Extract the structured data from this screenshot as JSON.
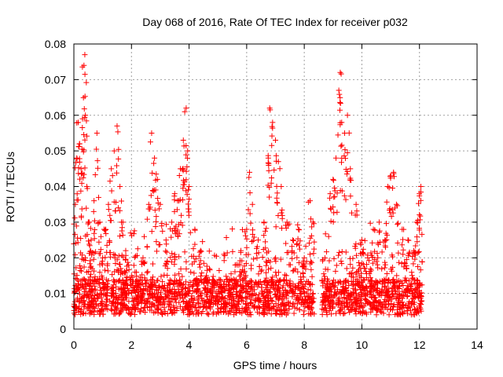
{
  "chart_data": {
    "type": "scatter",
    "title": "Day 068 of 2016, Rate Of TEC Index for receiver p032",
    "xlabel": "GPS time / hours",
    "ylabel": "ROTI / TECUs",
    "xlim": [
      0,
      14
    ],
    "ylim": [
      0,
      0.08
    ],
    "x_ticks": [
      0,
      2,
      4,
      6,
      8,
      10,
      12,
      14
    ],
    "y_ticks": [
      0,
      0.01,
      0.02,
      0.03,
      0.04,
      0.05,
      0.06,
      0.07,
      0.08
    ],
    "x_tick_labels": [
      "0",
      "2",
      "4",
      "6",
      "8",
      "10",
      "12",
      "14"
    ],
    "y_tick_labels": [
      "0",
      "0.01",
      "0.02",
      "0.03",
      "0.04",
      "0.05",
      "0.06",
      "0.07",
      "0.08"
    ],
    "grid": true,
    "marker": "plus",
    "marker_color": "#ff0000",
    "x_range_of_data": [
      0.0,
      12.1
    ],
    "data_gap": [
      8.35,
      8.6
    ],
    "series": [
      {
        "name": "ROTI",
        "x": [
          0.05,
          0.1,
          0.15,
          0.2,
          0.25,
          0.3,
          0.35,
          0.38,
          0.4,
          0.45,
          0.5,
          0.6,
          0.7,
          0.8,
          0.9,
          1.0,
          1.1,
          1.2,
          1.3,
          1.4,
          1.5,
          1.6,
          1.7,
          1.8,
          1.9,
          2.0,
          2.2,
          2.4,
          2.6,
          2.7,
          2.8,
          2.9,
          3.0,
          3.2,
          3.4,
          3.5,
          3.6,
          3.7,
          3.8,
          3.85,
          3.9,
          3.95,
          4.0,
          4.2,
          4.4,
          4.6,
          4.8,
          5.0,
          5.2,
          5.4,
          5.6,
          5.8,
          6.0,
          6.1,
          6.2,
          6.4,
          6.6,
          6.75,
          6.8,
          6.9,
          7.0,
          7.1,
          7.2,
          7.4,
          7.6,
          7.8,
          8.0,
          8.2,
          8.3,
          8.7,
          8.9,
          9.0,
          9.1,
          9.2,
          9.25,
          9.3,
          9.4,
          9.5,
          9.6,
          9.8,
          10.0,
          10.2,
          10.4,
          10.6,
          10.8,
          10.9,
          11.0,
          11.1,
          11.2,
          11.4,
          11.6,
          11.8,
          11.9,
          12.0,
          12.05
        ],
        "y": [
          0.035,
          0.048,
          0.058,
          0.052,
          0.045,
          0.059,
          0.074,
          0.077,
          0.06,
          0.04,
          0.03,
          0.025,
          0.036,
          0.055,
          0.03,
          0.02,
          0.028,
          0.035,
          0.045,
          0.05,
          0.057,
          0.04,
          0.03,
          0.022,
          0.018,
          0.015,
          0.012,
          0.02,
          0.035,
          0.055,
          0.048,
          0.042,
          0.035,
          0.025,
          0.03,
          0.038,
          0.036,
          0.045,
          0.053,
          0.061,
          0.062,
          0.05,
          0.04,
          0.028,
          0.022,
          0.015,
          0.012,
          0.01,
          0.012,
          0.014,
          0.018,
          0.022,
          0.028,
          0.044,
          0.035,
          0.025,
          0.03,
          0.048,
          0.062,
          0.058,
          0.053,
          0.047,
          0.04,
          0.03,
          0.025,
          0.028,
          0.02,
          0.036,
          0.03,
          0.01,
          0.038,
          0.042,
          0.048,
          0.067,
          0.072,
          0.058,
          0.055,
          0.06,
          0.045,
          0.035,
          0.025,
          0.02,
          0.028,
          0.03,
          0.025,
          0.04,
          0.043,
          0.044,
          0.035,
          0.028,
          0.025,
          0.022,
          0.03,
          0.038,
          0.04
        ]
      }
    ]
  }
}
